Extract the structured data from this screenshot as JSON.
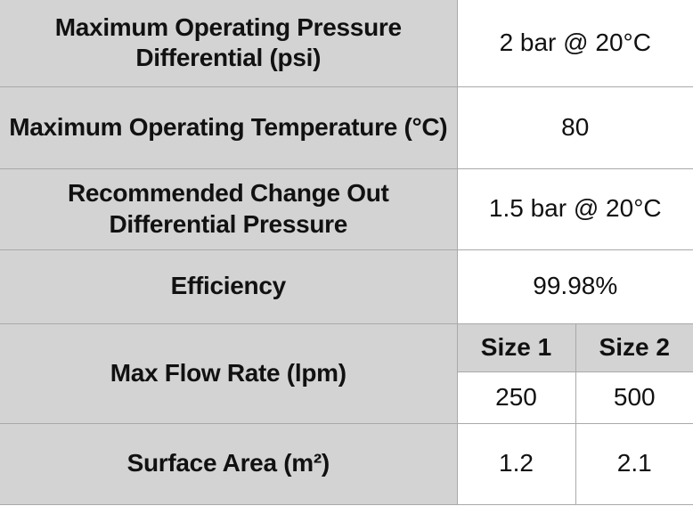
{
  "rows": {
    "pressure_diff": {
      "label": "Maximum Operating Pressure Differential (psi)",
      "value": "2 bar @ 20°C"
    },
    "temperature": {
      "label": "Maximum Operating Temperature (°C)",
      "value": "80"
    },
    "change_out": {
      "label": "Recommended Change Out Differential Pressure",
      "value": "1.5 bar @ 20°C"
    },
    "efficiency": {
      "label": "Efficiency",
      "value": "99.98%"
    },
    "flow_rate": {
      "label": "Max Flow Rate (lpm)",
      "size1_header": "Size 1",
      "size2_header": "Size 2",
      "size1_value": "250",
      "size2_value": "500"
    },
    "surface_area": {
      "label": "Surface Area (m²)",
      "size1_value": "1.2",
      "size2_value": "2.1"
    }
  },
  "colors": {
    "label_background": "#d3d3d3",
    "value_background": "#ffffff",
    "border": "#a9a9a9",
    "text": "#111111"
  }
}
